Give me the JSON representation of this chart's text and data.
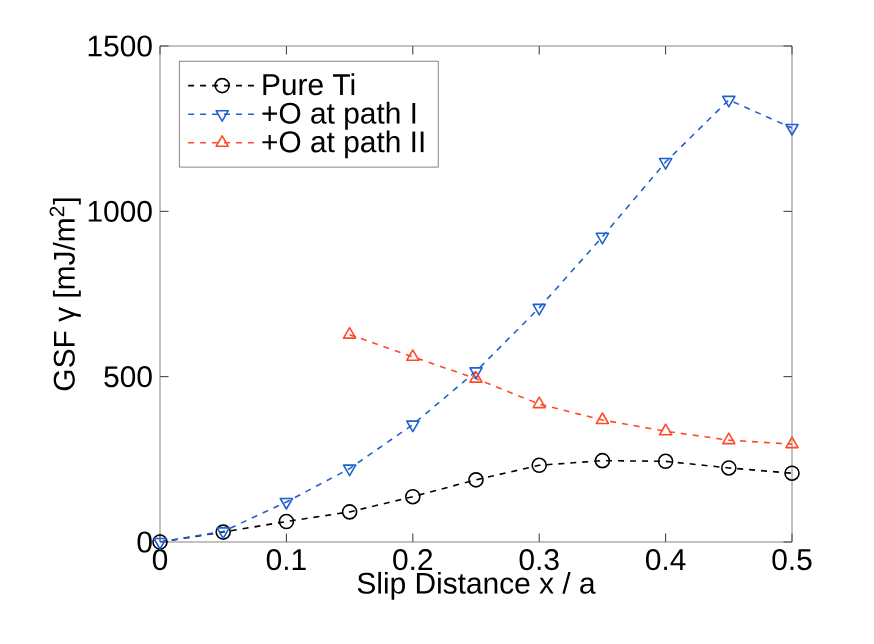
{
  "chart_data": {
    "type": "line",
    "xlabel": "Slip Distance x / a",
    "ylabel": "GSF γ [mJ/m$^{2}$]",
    "x": [
      0,
      0.05,
      0.1,
      0.15,
      0.2,
      0.25,
      0.3,
      0.35,
      0.4,
      0.45,
      0.5
    ],
    "series": [
      {
        "name": "Pure Ti",
        "color": "#000000",
        "marker": "circle",
        "values": [
          0,
          30,
          62,
          91,
          137,
          188,
          232,
          246,
          244,
          224,
          208
        ]
      },
      {
        "name": "+O at path I",
        "color": "#2060d0",
        "marker": "triangle down",
        "values": [
          0,
          32,
          121,
          222,
          355,
          516,
          708,
          923,
          1149,
          1337,
          1252
        ]
      },
      {
        "name": "+O at path II",
        "color": "#ff4a2a",
        "marker": "triangle",
        "x": [
          0.15,
          0.2,
          0.25,
          0.3,
          0.35,
          0.4,
          0.45,
          0.5
        ],
        "values": [
          627,
          560,
          494,
          417,
          369,
          335,
          308,
          296
        ]
      }
    ],
    "xlim": [
      0,
      0.5
    ],
    "ylim": [
      0,
      1500
    ],
    "xticks": [
      0,
      0.1,
      0.2,
      0.3,
      0.4,
      0.5
    ],
    "yticks": [
      0,
      500,
      1000,
      1500
    ],
    "grid": false,
    "legend": "top left",
    "line_style": "dashed"
  }
}
